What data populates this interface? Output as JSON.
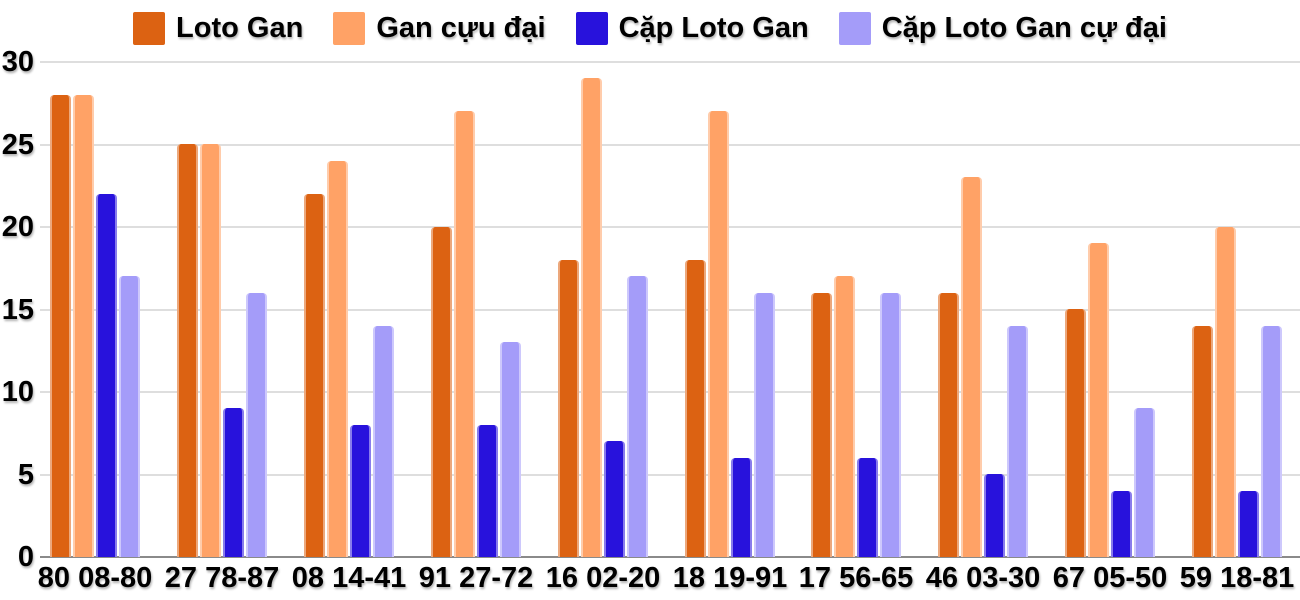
{
  "chart_data": {
    "type": "bar",
    "title": "",
    "xlabel": "",
    "ylabel": "",
    "categories": [
      "80 08-80",
      "27 78-87",
      "08 14-41",
      "91 27-72",
      "16 02-20",
      "18 19-91",
      "17 56-65",
      "46 03-30",
      "67 05-50",
      "59 18-81"
    ],
    "series": [
      {
        "name": "Loto Gan",
        "color": "#DC6212",
        "values": [
          28,
          25,
          22,
          20,
          18,
          18,
          16,
          16,
          15,
          14
        ]
      },
      {
        "name": "Gan cựu đại",
        "color": "#FFA266",
        "values": [
          28,
          25,
          24,
          27,
          29,
          27,
          17,
          23,
          19,
          20
        ]
      },
      {
        "name": "Cặp Loto Gan",
        "color": "#2812DC",
        "values": [
          22,
          9,
          8,
          8,
          7,
          6,
          6,
          5,
          4,
          4
        ]
      },
      {
        "name": "Cặp Loto Gan cự đại",
        "color": "#A49CF9",
        "values": [
          17,
          16,
          14,
          13,
          17,
          16,
          16,
          14,
          9,
          14
        ]
      }
    ],
    "ylim": [
      0,
      30
    ],
    "yticks": [
      0,
      5,
      10,
      15,
      20,
      25,
      30
    ],
    "grid": true,
    "legend_position": "top"
  },
  "colors": {
    "background": "#FFFFFF",
    "gridline": "#DEDEDE",
    "baseline": "#8A8A8A",
    "text": "#000000"
  }
}
